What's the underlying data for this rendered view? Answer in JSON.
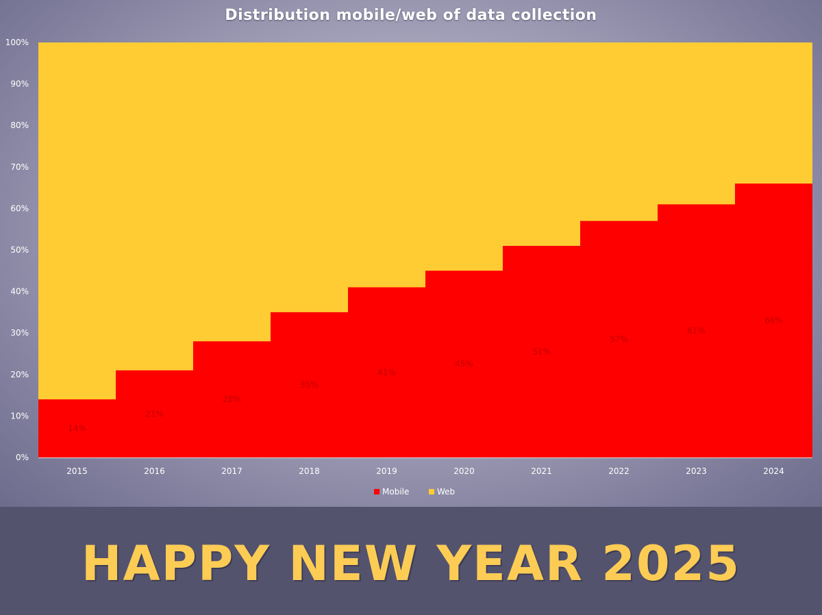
{
  "chart_data": {
    "type": "area",
    "step": true,
    "stacked_percent": true,
    "title": "Distribution mobile/web of data collection",
    "categories": [
      "2015",
      "2016",
      "2017",
      "2018",
      "2019",
      "2020",
      "2021",
      "2022",
      "2023",
      "2024"
    ],
    "series": [
      {
        "name": "Mobile",
        "color": "#ff0000",
        "values": [
          14,
          21,
          28,
          35,
          41,
          45,
          51,
          57,
          61,
          66
        ]
      },
      {
        "name": "Web",
        "color": "#ffcc33",
        "values": [
          86,
          79,
          72,
          65,
          59,
          55,
          49,
          43,
          39,
          34
        ]
      }
    ],
    "data_labels": [
      "14%",
      "21%",
      "28%",
      "35%",
      "41%",
      "45%",
      "51%",
      "57%",
      "61%",
      "66%"
    ],
    "y_ticks": [
      "0%",
      "10%",
      "20%",
      "30%",
      "40%",
      "50%",
      "60%",
      "70%",
      "80%",
      "90%",
      "100%"
    ],
    "ylim": [
      0,
      100
    ],
    "grid": false,
    "legend": "bottom"
  },
  "banner": {
    "text": "HAPPY NEW YEAR 2025"
  }
}
